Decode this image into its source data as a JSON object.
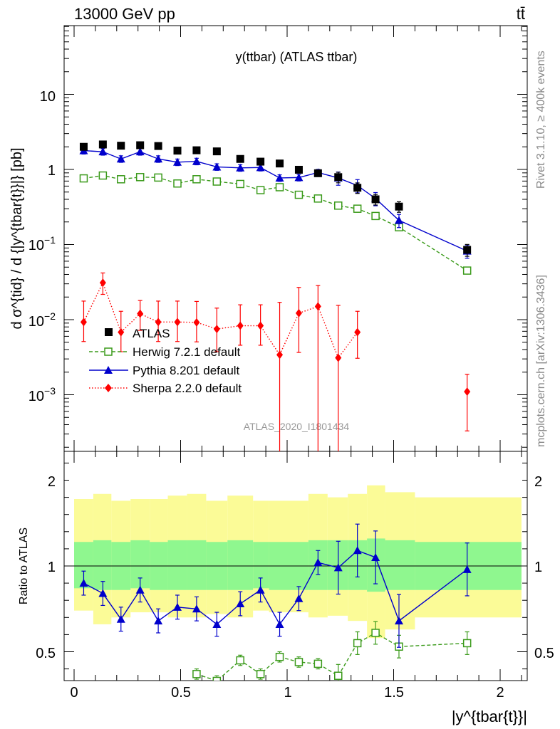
{
  "header": {
    "left": "13000 GeV pp",
    "right": "tt̄"
  },
  "side_labels": {
    "rivet": "Rivet 3.1.10, ≥ 400k events",
    "mcplots": "mcplots.cern.ch [arXiv:1306.3436]"
  },
  "watermark": "ATLAS_2020_I1801434",
  "colors": {
    "atlas": "#000000",
    "herwig": "#3a9a1a",
    "pythia": "#0000cc",
    "sherpa": "#ff0000",
    "band_inner": "#8ff78f",
    "band_outer": "#fbfb97"
  },
  "chart_data": [
    {
      "type": "scatter",
      "title": "y(ttbar) (ATLAS ttbar)",
      "ylabel": "d σ^{tid} / d {|y^{tbar{t}}|} [pb]",
      "yscale": "log",
      "ylim": [
        0.0002,
        40
      ],
      "xlim": [
        -0.05,
        2.15
      ],
      "y_tick_labels": [
        "10^-3",
        "10^-2",
        "10^-1",
        "1",
        "10"
      ],
      "legend_position": "middle-left",
      "x": [
        0.045,
        0.135,
        0.22,
        0.31,
        0.395,
        0.485,
        0.575,
        0.67,
        0.78,
        0.875,
        0.965,
        1.055,
        1.145,
        1.24,
        1.33,
        1.415,
        1.525,
        1.845
      ],
      "series": [
        {
          "name": "ATLAS",
          "marker": "square",
          "values": [
            2.0,
            2.15,
            2.07,
            2.1,
            2.05,
            1.78,
            1.8,
            1.74,
            1.38,
            1.27,
            1.2,
            0.99,
            0.89,
            0.79,
            0.57,
            0.4,
            0.32,
            0.085
          ]
        },
        {
          "name": "Herwig 7.2.1 default",
          "marker": "open-square",
          "line": "dashed",
          "values": [
            0.76,
            0.83,
            0.74,
            0.79,
            0.78,
            0.65,
            0.74,
            0.69,
            0.64,
            0.53,
            0.58,
            0.46,
            0.41,
            0.33,
            0.3,
            0.24,
            0.17,
            0.045
          ]
        },
        {
          "name": "Pythia 8.201 default",
          "marker": "triangle",
          "line": "solid",
          "values": [
            1.78,
            1.72,
            1.38,
            1.72,
            1.38,
            1.25,
            1.28,
            1.08,
            1.05,
            1.06,
            0.77,
            0.78,
            0.91,
            0.77,
            0.61,
            0.41,
            0.21,
            0.082
          ]
        },
        {
          "name": "Sherpa 2.2.0 default",
          "marker": "diamond",
          "line": "dotted",
          "values": [
            0.0093,
            0.031,
            0.0068,
            0.012,
            0.0093,
            0.0093,
            0.0092,
            0.0075,
            0.0083,
            0.0083,
            0.0034,
            0.0122,
            0.015,
            0.0031,
            0.0068,
            null,
            null,
            0.0011
          ]
        }
      ]
    },
    {
      "type": "scatter",
      "ylabel": "Ratio to ATLAS",
      "xlabel": "|y^{tbar{t}}|",
      "ylim": [
        0.35,
        2.35
      ],
      "xlim": [
        -0.05,
        2.15
      ],
      "x_tick_labels": [
        "0",
        "0.5",
        "1",
        "1.5",
        "2"
      ],
      "y_tick_labels": [
        "0.5",
        "1",
        "2"
      ],
      "x": [
        0.045,
        0.135,
        0.22,
        0.31,
        0.395,
        0.485,
        0.575,
        0.67,
        0.78,
        0.875,
        0.965,
        1.055,
        1.145,
        1.24,
        1.33,
        1.415,
        1.525,
        1.845
      ],
      "series": [
        {
          "name": "Herwig 7.2.1 default",
          "values": [
            null,
            null,
            null,
            null,
            null,
            null,
            0.37,
            0.33,
            0.45,
            0.37,
            0.47,
            0.44,
            0.43,
            0.36,
            0.55,
            0.61,
            0.53,
            0.55
          ]
        },
        {
          "name": "Pythia 8.201 default",
          "values": [
            0.9,
            0.84,
            0.69,
            0.86,
            0.68,
            0.76,
            0.75,
            0.66,
            0.78,
            0.86,
            0.66,
            0.81,
            1.02,
            0.99,
            1.09,
            1.05,
            0.68,
            0.98
          ]
        }
      ]
    }
  ]
}
